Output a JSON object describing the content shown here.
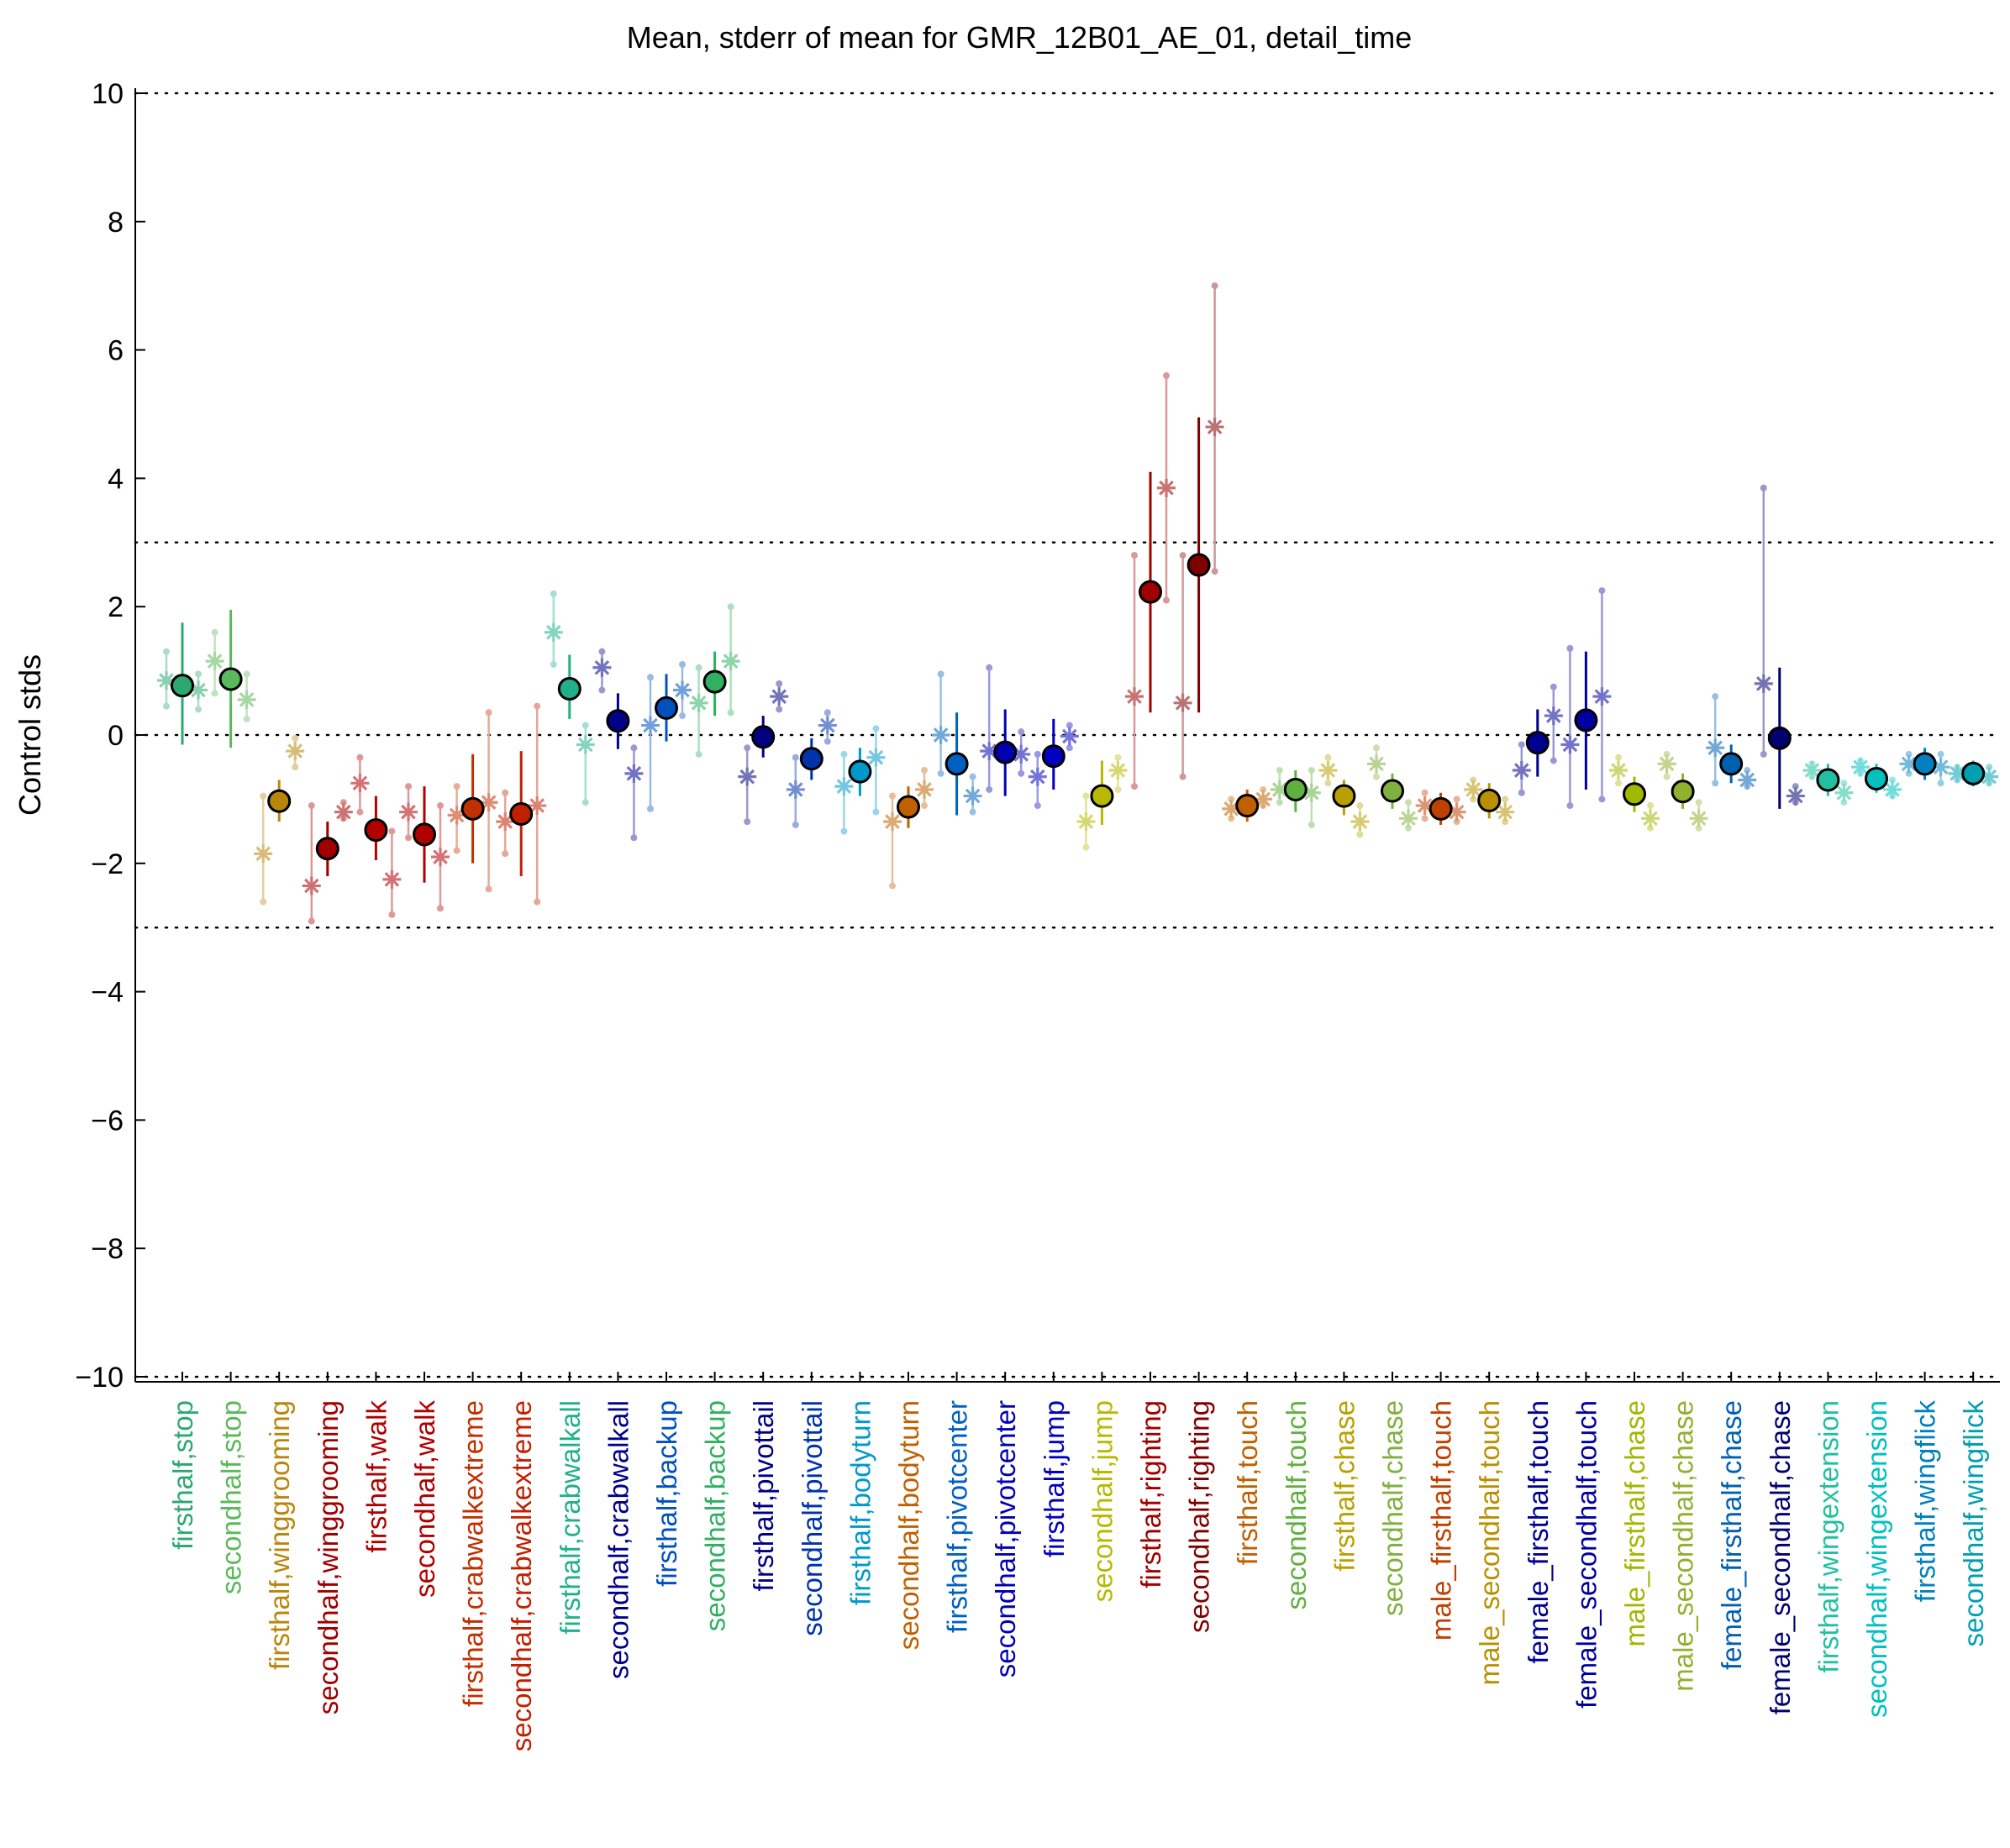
{
  "chart_data": {
    "type": "scatter",
    "title": "Mean, stderr of mean for GMR_12B01_AE_01, detail_time",
    "xlabel": "",
    "ylabel": "Control stds",
    "ylim": [
      -10,
      10
    ],
    "yticks": [
      -10,
      -8,
      -6,
      -4,
      -2,
      0,
      2,
      4,
      6,
      8,
      10
    ],
    "ytick_labels": [
      "−10",
      "−8",
      "−6",
      "−4",
      "−2",
      "0",
      "2",
      "4",
      "6",
      "8",
      "10"
    ],
    "reference_lines": [
      -10,
      -3,
      0,
      3,
      10
    ],
    "grid": false,
    "categories": [
      "firsthalf,stop",
      "secondhalf,stop",
      "firsthalf,winggrooming",
      "secondhalf,winggrooming",
      "firsthalf,walk",
      "secondhalf,walk",
      "firsthalf,crabwalkextreme",
      "secondhalf,crabwalkextreme",
      "firsthalf,crabwalkall",
      "secondhalf,crabwalkall",
      "firsthalf,backup",
      "secondhalf,backup",
      "firsthalf,pivottail",
      "secondhalf,pivottail",
      "firsthalf,bodyturn",
      "secondhalf,bodyturn",
      "firsthalf,pivotcenter",
      "secondhalf,pivotcenter",
      "firsthalf,jump",
      "secondhalf,jump",
      "firsthalf,righting",
      "secondhalf,righting",
      "firsthalf,touch",
      "secondhalf,touch",
      "firsthalf,chase",
      "secondhalf,chase",
      "male_firsthalf,touch",
      "male_secondhalf,touch",
      "female_firsthalf,touch",
      "female_secondhalf,touch",
      "male_firsthalf,chase",
      "male_secondhalf,chase",
      "female_firsthalf,chase",
      "female_secondhalf,chase",
      "firsthalf,wingextension",
      "secondhalf,wingextension",
      "firsthalf,wingflick",
      "secondhalf,wingflick"
    ],
    "colors": [
      "#2ca870",
      "#5cb85c",
      "#b8860b",
      "#a00000",
      "#b00000",
      "#b00000",
      "#c03000",
      "#c02000",
      "#20b08a",
      "#00008b",
      "#0050c0",
      "#30b060",
      "#000080",
      "#0033aa",
      "#0099cc",
      "#c06000",
      "#0060c0",
      "#0000b0",
      "#0000c0",
      "#b8b800",
      "#a00000",
      "#800000",
      "#c06000",
      "#60b040",
      "#b8a000",
      "#80b040",
      "#c04000",
      "#b89000",
      "#000090",
      "#0000a0",
      "#a0b800",
      "#90b030",
      "#0060b0",
      "#000070",
      "#20c0a0",
      "#00c0c0",
      "#0080c0",
      "#00a0b0"
    ],
    "series": [
      {
        "name": "mean",
        "values": [
          0.77,
          0.87,
          -1.03,
          -1.77,
          -1.48,
          -1.55,
          -1.15,
          -1.23,
          0.72,
          0.22,
          0.42,
          0.83,
          -0.03,
          -0.37,
          -0.57,
          -1.12,
          -0.45,
          -0.27,
          -0.33,
          -0.95,
          2.23,
          2.65,
          -1.1,
          -0.85,
          -0.95,
          -0.87,
          -1.15,
          -1.02,
          -0.12,
          0.23,
          -0.92,
          -0.88,
          -0.45,
          -0.05,
          -0.7,
          -0.68,
          -0.45,
          -0.6
        ],
        "err_low": [
          -0.15,
          -0.2,
          -1.35,
          -2.2,
          -1.95,
          -2.3,
          -2.0,
          -2.2,
          0.25,
          -0.22,
          -0.1,
          0.3,
          -0.35,
          -0.7,
          -0.95,
          -1.45,
          -1.25,
          -0.95,
          -0.85,
          -1.4,
          0.35,
          0.35,
          -1.35,
          -1.2,
          -1.25,
          -1.15,
          -1.4,
          -1.3,
          -0.65,
          -0.85,
          -1.2,
          -1.15,
          -0.75,
          -1.15,
          -0.95,
          -0.9,
          -0.7,
          -0.8
        ],
        "err_high": [
          1.75,
          1.95,
          -0.7,
          -1.35,
          -0.95,
          -0.8,
          -0.3,
          -0.25,
          1.25,
          0.65,
          0.95,
          1.3,
          0.3,
          -0.05,
          -0.2,
          -0.8,
          0.35,
          0.4,
          0.25,
          -0.4,
          4.1,
          4.95,
          -0.85,
          -0.55,
          -0.7,
          -0.6,
          -0.9,
          -0.75,
          0.4,
          1.3,
          -0.65,
          -0.6,
          -0.15,
          1.05,
          -0.45,
          -0.45,
          -0.2,
          -0.4
        ]
      },
      {
        "name": "first_replicate",
        "values": [
          0.85,
          1.15,
          -1.85,
          -2.35,
          -0.75,
          -1.2,
          -1.25,
          -1.35,
          1.6,
          1.05,
          0.15,
          0.5,
          -0.65,
          -0.85,
          -0.8,
          -1.35,
          0.0,
          -0.25,
          -0.65,
          -1.35,
          0.6,
          0.5,
          -1.15,
          -0.85,
          -0.55,
          -0.45,
          -1.1,
          -0.85,
          -0.55,
          -0.15,
          -0.55,
          -0.45,
          -0.2,
          0.8,
          -0.55,
          -0.5,
          -0.45,
          -0.6
        ],
        "err_low": [
          0.45,
          0.65,
          -2.6,
          -2.9,
          -1.2,
          -1.6,
          -1.8,
          -1.85,
          1.1,
          0.7,
          -1.15,
          -0.3,
          -1.35,
          -1.4,
          -1.5,
          -2.35,
          -0.6,
          -0.85,
          -1.1,
          -1.75,
          -0.8,
          -0.65,
          -1.3,
          -1.05,
          -0.75,
          -0.65,
          -1.3,
          -1.0,
          -0.9,
          -1.1,
          -0.75,
          -0.65,
          -0.75,
          -0.3,
          -0.65,
          -0.6,
          -0.6,
          -0.7
        ],
        "err_high": [
          1.3,
          1.6,
          -0.95,
          -1.1,
          -0.35,
          -0.8,
          -0.8,
          -0.9,
          2.2,
          1.3,
          0.9,
          1.05,
          -0.2,
          -0.35,
          -0.3,
          -0.95,
          0.95,
          1.05,
          -0.3,
          -0.95,
          2.8,
          2.8,
          -1.0,
          -0.55,
          -0.35,
          -0.2,
          -0.9,
          -0.7,
          -0.15,
          1.35,
          -0.35,
          -0.3,
          0.6,
          3.85,
          -0.45,
          -0.4,
          -0.3,
          -0.5
        ]
      },
      {
        "name": "second_replicate",
        "values": [
          0.7,
          0.55,
          -0.25,
          -1.2,
          -2.25,
          -1.9,
          -1.05,
          -1.1,
          -0.15,
          -0.6,
          0.7,
          1.15,
          0.6,
          0.15,
          -0.35,
          -0.85,
          -0.95,
          -0.3,
          -0.02,
          -0.55,
          3.85,
          4.8,
          -1.0,
          -0.9,
          -1.35,
          -1.3,
          -1.2,
          -1.2,
          0.3,
          0.6,
          -1.3,
          -1.3,
          -0.7,
          -0.95,
          -0.9,
          -0.85,
          -0.5,
          -0.65
        ],
        "err_low": [
          0.4,
          0.25,
          -0.5,
          -1.3,
          -2.8,
          -2.7,
          -2.4,
          -2.6,
          -1.05,
          -1.6,
          0.3,
          0.35,
          0.4,
          -0.1,
          -1.2,
          -1.1,
          -1.2,
          -0.6,
          -0.2,
          -0.85,
          2.1,
          2.55,
          -1.1,
          -1.4,
          -1.55,
          -1.45,
          -1.35,
          -1.35,
          -0.4,
          -1.0,
          -1.45,
          -1.45,
          -0.8,
          -1.05,
          -1.05,
          -0.95,
          -0.75,
          -0.75
        ],
        "err_high": [
          0.95,
          0.95,
          -0.05,
          -1.05,
          -1.5,
          -1.1,
          0.35,
          0.45,
          0.15,
          -0.2,
          1.1,
          2.0,
          0.8,
          0.35,
          0.1,
          -0.55,
          -0.65,
          0.05,
          0.15,
          -0.35,
          5.6,
          7.0,
          -0.85,
          -0.55,
          -1.1,
          -1.05,
          -1.0,
          -1.0,
          0.75,
          2.25,
          -1.1,
          -1.05,
          -0.55,
          -0.8,
          -0.75,
          -0.7,
          -0.3,
          -0.5
        ]
      }
    ],
    "legend": "none"
  }
}
